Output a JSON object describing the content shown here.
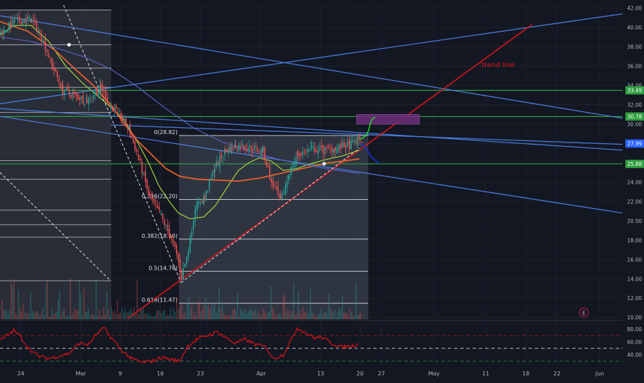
{
  "theme": {
    "background": "#131722",
    "axis_text": "#b2b5be",
    "highlight_zone": "#2a2e39",
    "fib_box": "#3a3f4c",
    "candle_up": "#26a69a",
    "candle_down": "#ef5350",
    "green_level": "#2ea043",
    "channel_blue": "#4a7bd8",
    "trendline_red": "#e3151a",
    "ma_green": "#9ccc3b",
    "ma_orange": "#e8622c",
    "ma_violet": "#5b62c4",
    "rsi_line": "#e01414",
    "target_box": "#6b2e7a",
    "projection_green": "#22d22a",
    "projection_blue": "#1730d6"
  },
  "chart_data": [
    {
      "type": "candlestick",
      "title": "",
      "xlabel": "",
      "ylabel": "",
      "ylim": [
        9.8,
        42.4
      ],
      "x_ticks": [
        "24",
        "Mar",
        "9",
        "16",
        "23",
        "Apr",
        "13",
        "20",
        "27",
        "May",
        "11",
        "18",
        "22",
        "Jun"
      ],
      "y_ticks": [
        "42.00",
        "40.00",
        "38.00",
        "36.00",
        "34.00",
        "32.00",
        "30.00",
        "28.00",
        "26.00",
        "24.00",
        "22.00",
        "20.00",
        "18.00",
        "16.00",
        "14.00",
        "12.00",
        "10.00"
      ],
      "price_tags": [
        {
          "label": "33.49",
          "value": 33.49,
          "color": "green"
        },
        {
          "label": "30.78",
          "value": 30.78,
          "color": "green"
        },
        {
          "label": "27.99",
          "value": 27.99,
          "color": "blue"
        },
        {
          "label": "25.88",
          "value": 25.88,
          "color": "green"
        }
      ],
      "horizontal_levels": [
        33.49,
        30.78,
        25.88
      ],
      "fib_levels": [
        {
          "label": "0(28.82)",
          "value": 28.82
        },
        {
          "label": "0.236(22.20)",
          "value": 22.2
        },
        {
          "label": "0.382(18.10)",
          "value": 18.1
        },
        {
          "label": "0.5(14.78)",
          "value": 14.78
        },
        {
          "label": "0.618(11.47)",
          "value": 11.47
        }
      ],
      "annotations": [
        {
          "text": "trend line",
          "color": "red"
        },
        {
          "text": "E",
          "kind": "earnings-marker"
        }
      ],
      "grid": true
    },
    {
      "type": "line",
      "title": "",
      "ylim": [
        25,
        92
      ],
      "y_ticks": [
        "80.00",
        "60.00",
        "40.00"
      ],
      "reference_lines": [
        70,
        50,
        30
      ],
      "grid": true
    }
  ]
}
